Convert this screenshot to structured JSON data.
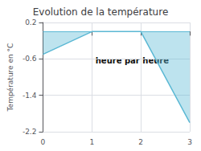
{
  "chart_data": {
    "type": "line",
    "title": "Evolution de la température",
    "ylabel": "Température en °C",
    "annotations": [
      "heure par heure"
    ],
    "x": [
      0,
      1,
      2,
      3
    ],
    "values": [
      -0.5,
      0.0,
      0.0,
      -2.0
    ],
    "color": "#5bb8d4",
    "hlines": [
      0.0
    ],
    "xlim": [
      0,
      3
    ],
    "xticks": [
      0,
      1,
      2,
      3
    ],
    "ylim": [
      -2.2,
      0.2
    ],
    "yticks": [
      0.2,
      -0.6,
      -1.4,
      -2.2
    ],
    "grid": true
  }
}
